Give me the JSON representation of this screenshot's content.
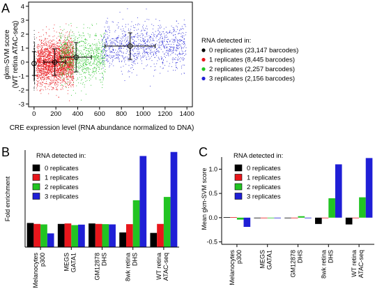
{
  "chart_data": [
    {
      "panel": "A",
      "type": "scatter",
      "xlabel": "CRE expression level (RNA abundance normalized to DNA)",
      "ylabel": [
        "gkm-SVM score",
        "(WT retina ATAC-seq)"
      ],
      "xlim": [
        -50,
        1450
      ],
      "ylim": [
        -3.2,
        4.3
      ],
      "xticks": [
        0,
        200,
        400,
        600,
        800,
        1000,
        1200,
        1400
      ],
      "yticks": [
        -3,
        -2,
        -1,
        0,
        1,
        2,
        3,
        4
      ],
      "grid": false,
      "legend_title": "RNA detected in:",
      "legend_position": "right",
      "series": [
        {
          "name": "0 replicates (23,147 barcodes)",
          "color": "#000000",
          "x_center": 0,
          "y_mean": -0.1,
          "y_sd": 0.85,
          "x_sd": 0
        },
        {
          "name": "1 replicates (8,445 barcodes)",
          "color": "#e8161b",
          "x_center": 190,
          "y_mean": 0.0,
          "y_sd": 0.95,
          "x_sd": 100
        },
        {
          "name": "2 replicates (2,257 barcodes)",
          "color": "#22c422",
          "x_center": 385,
          "y_mean": 0.35,
          "y_sd": 1.05,
          "x_sd": 140
        },
        {
          "name": "3 replicates (2,156 barcodes)",
          "color": "#1f1fd6",
          "x_center": 880,
          "y_mean": 1.15,
          "y_sd": 0.95,
          "x_sd": 230
        }
      ]
    },
    {
      "panel": "B",
      "type": "bar",
      "ylabel": "Fold enrichment",
      "ylim": [
        0,
        4.1
      ],
      "yticks": [],
      "legend_title": "RNA detected in:",
      "legend_position": "top-left",
      "categories": [
        [
          "Melanocytes",
          "p300"
        ],
        [
          "MEGS",
          "GATA1"
        ],
        [
          "GM12878",
          "DHS"
        ],
        [
          "8wk retina",
          "DHS"
        ],
        [
          "WT retina",
          "ATAC-seq"
        ]
      ],
      "series": [
        {
          "name": "0 replicates",
          "color": "#000000",
          "values": [
            1.02,
            0.98,
            1.0,
            0.62,
            0.6
          ]
        },
        {
          "name": "1 replicates",
          "color": "#e8161b",
          "values": [
            0.98,
            1.0,
            0.98,
            0.97,
            0.98
          ]
        },
        {
          "name": "2 replicates",
          "color": "#22c422",
          "values": [
            0.96,
            0.93,
            0.97,
            1.98,
            2.12
          ]
        },
        {
          "name": "3 replicates",
          "color": "#1f1fd6",
          "values": [
            0.58,
            0.95,
            0.96,
            3.85,
            4.02
          ]
        }
      ]
    },
    {
      "panel": "C",
      "type": "bar",
      "ylabel": "Mean gkm-SVM score",
      "ylim": [
        -0.55,
        1.25
      ],
      "yticks": [
        -0.5,
        0.0,
        0.5,
        1.0
      ],
      "legend_title": "RNA detected in:",
      "legend_position": "top-left",
      "categories": [
        [
          "Melanocytes",
          "p300"
        ],
        [
          "MEGS",
          "GATA1"
        ],
        [
          "GM12878",
          "DHS"
        ],
        [
          "8wk retina",
          "DHS"
        ],
        [
          "WT retina",
          "ATAC-seq"
        ]
      ],
      "series": [
        {
          "name": "0 replicates",
          "color": "#000000",
          "values": [
            0.01,
            0.0,
            0.0,
            -0.13,
            -0.14
          ]
        },
        {
          "name": "1 replicates",
          "color": "#e8161b",
          "values": [
            0.01,
            0.0,
            0.0,
            0.0,
            0.0
          ]
        },
        {
          "name": "2 replicates",
          "color": "#22c422",
          "values": [
            -0.04,
            -0.01,
            0.03,
            0.4,
            0.42
          ]
        },
        {
          "name": "3 replicates",
          "color": "#1f1fd6",
          "values": [
            -0.19,
            -0.01,
            0.0,
            1.1,
            1.23
          ]
        }
      ]
    }
  ]
}
